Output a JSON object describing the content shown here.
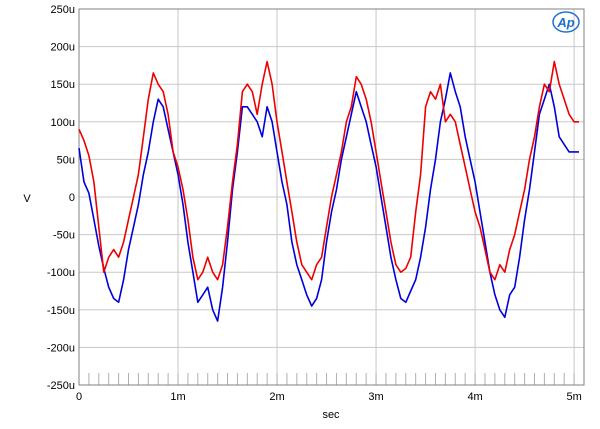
{
  "chart_data": {
    "type": "line",
    "xlabel": "sec",
    "ylabel": "V",
    "xlim": [
      0,
      0.0051
    ],
    "ylim": [
      -250,
      250
    ],
    "x_ticks": [
      {
        "value": 0,
        "label": "0"
      },
      {
        "value": 0.001,
        "label": "1m"
      },
      {
        "value": 0.002,
        "label": "2m"
      },
      {
        "value": 0.003,
        "label": "3m"
      },
      {
        "value": 0.004,
        "label": "4m"
      },
      {
        "value": 0.005,
        "label": "5m"
      }
    ],
    "y_ticks": [
      {
        "value": 250,
        "label": "250u"
      },
      {
        "value": 200,
        "label": "200u"
      },
      {
        "value": 150,
        "label": "150u"
      },
      {
        "value": 100,
        "label": "100u"
      },
      {
        "value": 50,
        "label": "50u"
      },
      {
        "value": 0,
        "label": "0"
      },
      {
        "value": -50,
        "label": "-50u"
      },
      {
        "value": -100,
        "label": "-100u"
      },
      {
        "value": -150,
        "label": "-150u"
      },
      {
        "value": -200,
        "label": "-200u"
      },
      {
        "value": -250,
        "label": "-250u"
      }
    ],
    "grid": true,
    "series": [
      {
        "color": "#0000dd",
        "x": [
          0,
          5e-05,
          0.0001,
          0.00015,
          0.0002,
          0.00025,
          0.0003,
          0.00035,
          0.0004,
          0.00045,
          0.0005,
          0.00055,
          0.0006,
          0.00065,
          0.0007,
          0.00075,
          0.0008,
          0.00085,
          0.0009,
          0.00095,
          0.001,
          0.00105,
          0.0011,
          0.00115,
          0.0012,
          0.00125,
          0.0013,
          0.00135,
          0.0014,
          0.00145,
          0.0015,
          0.00155,
          0.0016,
          0.00165,
          0.0017,
          0.00175,
          0.0018,
          0.00185,
          0.0019,
          0.00195,
          0.002,
          0.00205,
          0.0021,
          0.00215,
          0.0022,
          0.00225,
          0.0023,
          0.00235,
          0.0024,
          0.00245,
          0.0025,
          0.00255,
          0.0026,
          0.00265,
          0.0027,
          0.00275,
          0.0028,
          0.00285,
          0.0029,
          0.00295,
          0.003,
          0.00305,
          0.0031,
          0.00315,
          0.0032,
          0.00325,
          0.0033,
          0.00335,
          0.0034,
          0.00345,
          0.0035,
          0.00355,
          0.0036,
          0.00365,
          0.0037,
          0.00375,
          0.0038,
          0.00385,
          0.0039,
          0.00395,
          0.004,
          0.00405,
          0.0041,
          0.00415,
          0.0042,
          0.00425,
          0.0043,
          0.00435,
          0.0044,
          0.00445,
          0.0045,
          0.00455,
          0.0046,
          0.00465,
          0.0047,
          0.00475,
          0.0048,
          0.00485,
          0.0049,
          0.00495,
          0.005,
          0.00505
        ],
        "values": [
          65,
          20,
          5,
          -30,
          -65,
          -95,
          -120,
          -135,
          -140,
          -110,
          -70,
          -40,
          -10,
          30,
          60,
          100,
          130,
          120,
          90,
          60,
          30,
          -10,
          -60,
          -100,
          -140,
          -130,
          -120,
          -150,
          -165,
          -120,
          -60,
          10,
          60,
          120,
          120,
          110,
          100,
          80,
          120,
          100,
          60,
          20,
          -10,
          -60,
          -90,
          -110,
          -130,
          -145,
          -135,
          -110,
          -60,
          -20,
          10,
          50,
          80,
          110,
          140,
          120,
          100,
          70,
          40,
          0,
          -40,
          -80,
          -110,
          -135,
          -140,
          -125,
          -110,
          -80,
          -40,
          10,
          50,
          100,
          130,
          165,
          140,
          120,
          80,
          50,
          20,
          -20,
          -60,
          -100,
          -130,
          -150,
          -160,
          -130,
          -120,
          -80,
          -30,
          10,
          60,
          110,
          130,
          150,
          120,
          80,
          70,
          60,
          60,
          60
        ]
      },
      {
        "color": "#ee0000",
        "x": [
          0,
          5e-05,
          0.0001,
          0.00015,
          0.0002,
          0.00025,
          0.0003,
          0.00035,
          0.0004,
          0.00045,
          0.0005,
          0.00055,
          0.0006,
          0.00065,
          0.0007,
          0.00075,
          0.0008,
          0.00085,
          0.0009,
          0.00095,
          0.001,
          0.00105,
          0.0011,
          0.00115,
          0.0012,
          0.00125,
          0.0013,
          0.00135,
          0.0014,
          0.00145,
          0.0015,
          0.00155,
          0.0016,
          0.00165,
          0.0017,
          0.00175,
          0.0018,
          0.00185,
          0.0019,
          0.00195,
          0.002,
          0.00205,
          0.0021,
          0.00215,
          0.0022,
          0.00225,
          0.0023,
          0.00235,
          0.0024,
          0.00245,
          0.0025,
          0.00255,
          0.0026,
          0.00265,
          0.0027,
          0.00275,
          0.0028,
          0.00285,
          0.0029,
          0.00295,
          0.003,
          0.00305,
          0.0031,
          0.00315,
          0.0032,
          0.00325,
          0.0033,
          0.00335,
          0.0034,
          0.00345,
          0.0035,
          0.00355,
          0.0036,
          0.00365,
          0.0037,
          0.00375,
          0.0038,
          0.00385,
          0.0039,
          0.00395,
          0.004,
          0.00405,
          0.0041,
          0.00415,
          0.0042,
          0.00425,
          0.0043,
          0.00435,
          0.0044,
          0.00445,
          0.0045,
          0.00455,
          0.0046,
          0.00465,
          0.0047,
          0.00475,
          0.0048,
          0.00485,
          0.0049,
          0.00495,
          0.005,
          0.00505
        ],
        "values": [
          90,
          75,
          55,
          20,
          -40,
          -100,
          -80,
          -70,
          -80,
          -60,
          -30,
          0,
          30,
          80,
          130,
          165,
          150,
          140,
          110,
          60,
          40,
          10,
          -30,
          -80,
          -110,
          -100,
          -80,
          -100,
          -110,
          -90,
          -40,
          20,
          70,
          140,
          150,
          140,
          110,
          150,
          180,
          150,
          100,
          60,
          20,
          -20,
          -60,
          -90,
          -100,
          -110,
          -90,
          -80,
          -40,
          0,
          30,
          60,
          100,
          120,
          160,
          150,
          130,
          100,
          60,
          20,
          -20,
          -60,
          -90,
          -100,
          -95,
          -80,
          -20,
          30,
          120,
          140,
          130,
          150,
          100,
          110,
          100,
          70,
          40,
          10,
          -20,
          -40,
          -70,
          -100,
          -110,
          -90,
          -100,
          -70,
          -50,
          -20,
          10,
          50,
          80,
          120,
          150,
          140,
          180,
          150,
          130,
          110,
          100,
          100
        ]
      }
    ]
  }
}
